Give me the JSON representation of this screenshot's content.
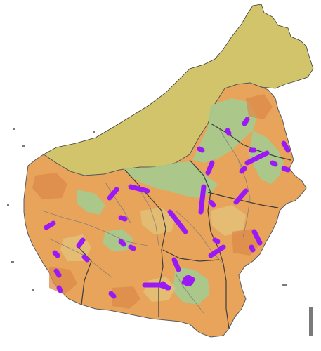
{
  "map": {
    "colors": {
      "sea": "#ffffff",
      "other_region_fill": "#d1c46b",
      "land_base": "#e7a45a",
      "land_high": "#e3c27a",
      "forest": "#a9c98d",
      "forest_dark": "#8fbf7e",
      "orange_patch": "#de8a4a",
      "coast_dark": "#5a5a5a",
      "border": "#3d3d3d",
      "river": "#7a7a7a",
      "highlight": "#9b19f5"
    },
    "layers": [
      "base-terrain",
      "forest-cover",
      "admin-borders",
      "rivers",
      "highlighted-segments"
    ],
    "highlight_segment_count": 34
  }
}
